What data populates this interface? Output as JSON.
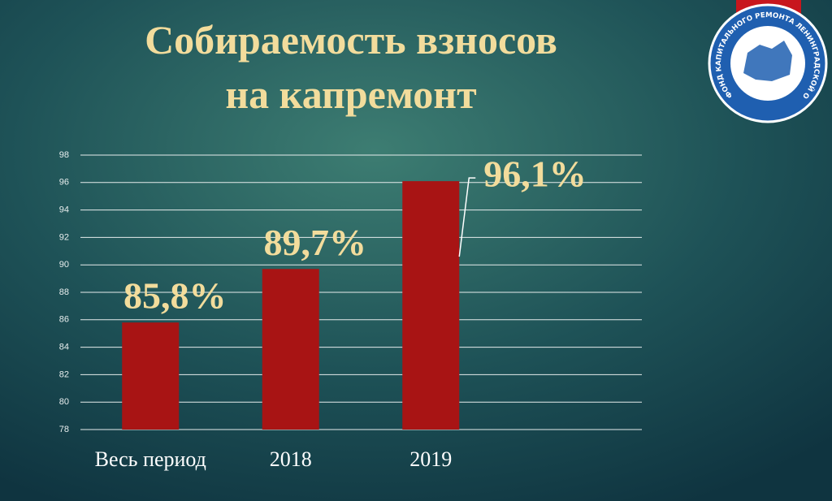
{
  "chart_data": {
    "type": "bar",
    "title": [
      "Собираемость взносов",
      "на капремонт"
    ],
    "categories": [
      "Весь период",
      "2018",
      "2019"
    ],
    "values": [
      85.8,
      89.7,
      96.1
    ],
    "value_labels": [
      "85,8%",
      "89,7%",
      "96,1%"
    ],
    "color": "#a81414",
    "ylim": [
      78,
      98
    ],
    "yticks": [
      78,
      80,
      82,
      84,
      86,
      88,
      90,
      92,
      94,
      96,
      98
    ],
    "grid": true
  },
  "logo": {
    "text": "ФОНД КАПИТАЛЬНОГО РЕМОНТА ЛЕНИНГРАДСКОЙ ОБЛАСТИ"
  }
}
